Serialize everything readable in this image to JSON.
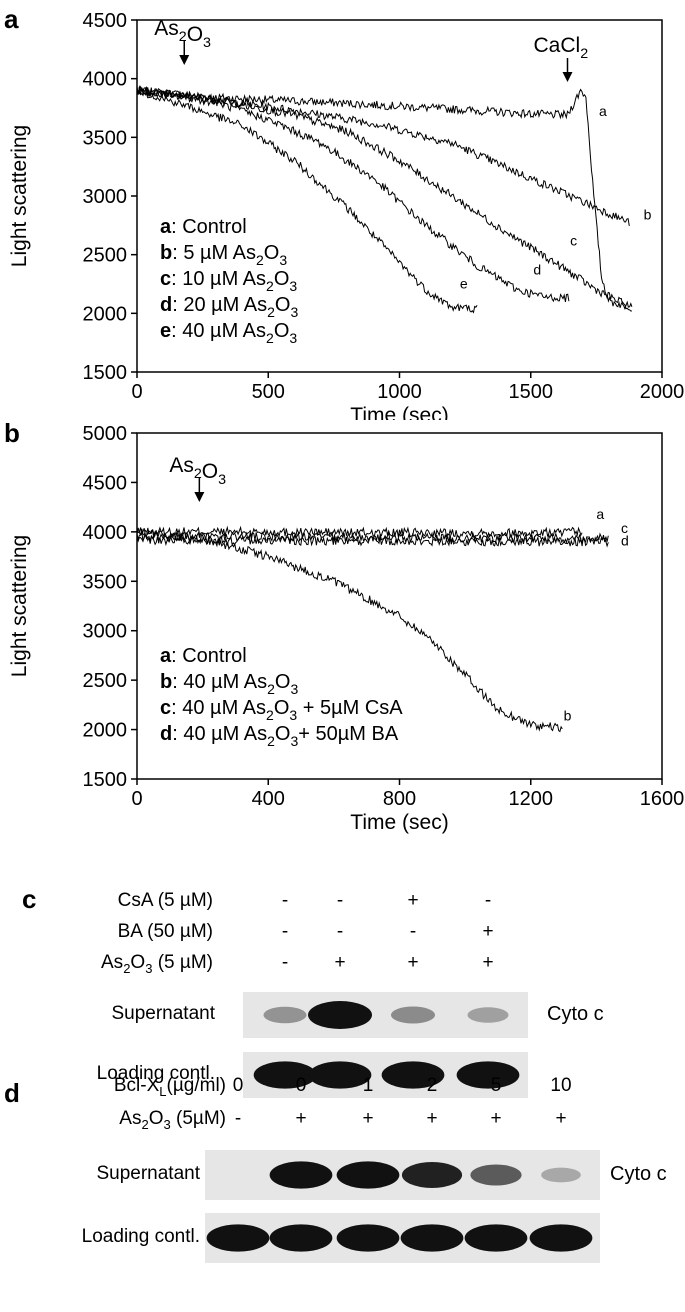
{
  "panels": {
    "a": {
      "letter": "a",
      "chart_data": {
        "type": "line",
        "xlabel": "Time (sec)",
        "ylabel": "Light scattering",
        "xlim": [
          0,
          2000
        ],
        "ylim": [
          1500,
          4500
        ],
        "xticks": [
          "0",
          "500",
          "1000",
          "1500",
          "2000"
        ],
        "yticks": [
          "1500",
          "2000",
          "2500",
          "3000",
          "3500",
          "4000",
          "4500"
        ],
        "annotations": [
          {
            "text_main": "As",
            "sub1": "2",
            "mid": "O",
            "sub2": "3",
            "x": 180
          },
          {
            "text_main": "CaCl",
            "sub1": "2",
            "mid": "",
            "sub2": "",
            "x": 1640
          }
        ],
        "legend": [
          {
            "key": "a",
            "label": ": Control"
          },
          {
            "key": "b",
            "label": ": 5 µM As",
            "sub1": "2",
            "mid": "O",
            "sub2": "3"
          },
          {
            "key": "c",
            "label": ": 10 µM As",
            "sub1": "2",
            "mid": "O",
            "sub2": "3"
          },
          {
            "key": "d",
            "label": ": 20 µM As",
            "sub1": "2",
            "mid": "O",
            "sub2": "3"
          },
          {
            "key": "e",
            "label": ": 40 µM As",
            "sub1": "2",
            "mid": "O",
            "sub2": "3"
          }
        ],
        "series": [
          {
            "name": "a",
            "x": [
              0,
              300,
              800,
              1200,
              1500,
              1640,
              1690,
              1710,
              1740,
              1770,
              1800,
              1890
            ],
            "y": [
              3900,
              3840,
              3790,
              3740,
              3700,
              3690,
              3900,
              3850,
              3000,
              2300,
              2100,
              2050
            ]
          },
          {
            "name": "b",
            "x": [
              0,
              300,
              600,
              900,
              1200,
              1400,
              1600,
              1750,
              1880
            ],
            "y": [
              3900,
              3820,
              3730,
              3620,
              3450,
              3250,
              3050,
              2900,
              2770
            ]
          },
          {
            "name": "c",
            "x": [
              0,
              300,
              600,
              800,
              1000,
              1200,
              1400,
              1600,
              1750,
              1890
            ],
            "y": [
              3900,
              3820,
              3690,
              3550,
              3300,
              3000,
              2700,
              2420,
              2200,
              2040
            ]
          },
          {
            "name": "d",
            "x": [
              0,
              300,
              500,
              700,
              900,
              1100,
              1300,
              1450,
              1550,
              1650
            ],
            "y": [
              3900,
              3800,
              3650,
              3450,
              3150,
              2750,
              2400,
              2200,
              2140,
              2130
            ]
          },
          {
            "name": "e",
            "x": [
              0,
              200,
              400,
              600,
              800,
              950,
              1100,
              1200,
              1300
            ],
            "y": [
              3900,
              3760,
              3600,
              3300,
              2900,
              2550,
              2200,
              2050,
              2040
            ]
          }
        ],
        "curve_labels": [
          {
            "text": "a",
            "x": 1760,
            "y": 3680
          },
          {
            "text": "b",
            "x": 1930,
            "y": 2800
          },
          {
            "text": "c",
            "x": 1650,
            "y": 2580
          },
          {
            "text": "d",
            "x": 1510,
            "y": 2330
          },
          {
            "text": "e",
            "x": 1230,
            "y": 2210
          }
        ]
      }
    },
    "b": {
      "letter": "b",
      "chart_data": {
        "type": "line",
        "xlabel": "Time (sec)",
        "ylabel": "Light scattering",
        "xlim": [
          0,
          1600
        ],
        "ylim": [
          1500,
          5000
        ],
        "xticks": [
          "0",
          "400",
          "800",
          "1200",
          "1600"
        ],
        "yticks": [
          "1500",
          "2000",
          "2500",
          "3000",
          "3500",
          "4000",
          "4500",
          "5000"
        ],
        "annotations": [
          {
            "text_main": "As",
            "sub1": "2",
            "mid": "O",
            "sub2": "3",
            "x": 190
          }
        ],
        "legend": [
          {
            "key": "a",
            "label": ": Control"
          },
          {
            "key": "b",
            "label": ": 40 µM As",
            "sub1": "2",
            "mid": "O",
            "sub2": "3"
          },
          {
            "key": "c",
            "label": ": 40 µM As",
            "sub1": "2",
            "mid": "O",
            "sub2": "3",
            "tail": " + 5µM CsA"
          },
          {
            "key": "d",
            "label": ": 40 µM As",
            "sub1": "2",
            "mid": "O",
            "sub2": "3",
            "tail": "+ 50µM BA"
          }
        ],
        "series": [
          {
            "name": "a",
            "x": [
              0,
              400,
              800,
              1200,
              1360
            ],
            "y": [
              4000,
              4000,
              3990,
              3990,
              4000
            ]
          },
          {
            "name": "b",
            "x": [
              0,
              200,
              400,
              600,
              800,
              900,
              1000,
              1100,
              1200,
              1300
            ],
            "y": [
              4000,
              3930,
              3750,
              3500,
              3150,
              2900,
              2550,
              2200,
              2050,
              2010
            ]
          },
          {
            "name": "c",
            "x": [
              0,
              400,
              800,
              1200,
              1440
            ],
            "y": [
              3950,
              3950,
              3940,
              3940,
              3940
            ]
          },
          {
            "name": "d",
            "x": [
              0,
              400,
              800,
              1200,
              1440
            ],
            "y": [
              3920,
              3910,
              3910,
              3900,
              3900
            ]
          }
        ],
        "curve_labels": [
          {
            "text": "a",
            "x": 1400,
            "y": 4130
          },
          {
            "text": "c",
            "x": 1475,
            "y": 3990
          },
          {
            "text": "d",
            "x": 1475,
            "y": 3860
          },
          {
            "text": "b",
            "x": 1300,
            "y": 2090
          }
        ]
      }
    },
    "c": {
      "letter": "c",
      "rows": [
        {
          "label": "CsA (5 µM)",
          "signs": [
            "-",
            "-",
            "+",
            "-"
          ]
        },
        {
          "label": "BA (50 µM)",
          "signs": [
            "-",
            "-",
            "-",
            "+"
          ]
        },
        {
          "label_main": "As",
          "sub1": "2",
          "mid": "O",
          "sub2": "3",
          "tail": " (5 µM)",
          "signs": [
            "-",
            "+",
            "+",
            "+"
          ]
        }
      ],
      "blots": [
        {
          "label": "Supernatant",
          "side": "Cyto c",
          "intensity": [
            0.18,
            1.0,
            0.22,
            0.1
          ]
        },
        {
          "label": "Loading contl.",
          "side": "",
          "intensity": [
            0.95,
            0.95,
            0.95,
            0.95
          ]
        }
      ]
    },
    "d": {
      "letter": "d",
      "rows": [
        {
          "label_main": "Bcl-X",
          "sub1": "L",
          "tail": "(µg/ml)",
          "signs": [
            "0",
            "0",
            "1",
            "2",
            "5",
            "10"
          ]
        },
        {
          "label_main": "As",
          "sub1": "2",
          "mid": "O",
          "sub2": "3",
          "tail": " (5µM)",
          "signs": [
            "-",
            "+",
            "+",
            "+",
            "+",
            "+"
          ]
        }
      ],
      "blots": [
        {
          "label": "Supernatant",
          "side": "Cyto c",
          "intensity": [
            0.0,
            0.95,
            0.95,
            0.85,
            0.5,
            0.05
          ]
        },
        {
          "label": "Loading contl.",
          "side": "",
          "intensity": [
            0.95,
            0.95,
            0.95,
            0.95,
            0.95,
            0.95
          ]
        }
      ]
    }
  },
  "colors": {
    "ink": "#000000",
    "band": "#111111",
    "blot_bg": "#e6e6e6"
  }
}
